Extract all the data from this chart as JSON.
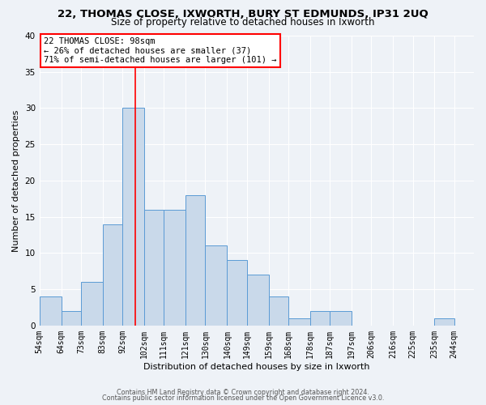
{
  "title": "22, THOMAS CLOSE, IXWORTH, BURY ST EDMUNDS, IP31 2UQ",
  "subtitle": "Size of property relative to detached houses in Ixworth",
  "xlabel": "Distribution of detached houses by size in Ixworth",
  "ylabel": "Number of detached properties",
  "bin_labels": [
    "54sqm",
    "64sqm",
    "73sqm",
    "83sqm",
    "92sqm",
    "102sqm",
    "111sqm",
    "121sqm",
    "130sqm",
    "140sqm",
    "149sqm",
    "159sqm",
    "168sqm",
    "178sqm",
    "187sqm",
    "197sqm",
    "206sqm",
    "216sqm",
    "225sqm",
    "235sqm",
    "244sqm"
  ],
  "bin_edges": [
    54,
    64,
    73,
    83,
    92,
    102,
    111,
    121,
    130,
    140,
    149,
    159,
    168,
    178,
    187,
    197,
    206,
    216,
    225,
    235,
    244
  ],
  "bar_heights": [
    4,
    2,
    6,
    14,
    30,
    16,
    16,
    18,
    11,
    9,
    7,
    4,
    1,
    2,
    2,
    0,
    0,
    0,
    0,
    1,
    0
  ],
  "bar_color": "#c9d9ea",
  "bar_edge_color": "#5b9bd5",
  "red_line_x": 98,
  "ylim": [
    0,
    40
  ],
  "yticks": [
    0,
    5,
    10,
    15,
    20,
    25,
    30,
    35,
    40
  ],
  "annotation_title": "22 THOMAS CLOSE: 98sqm",
  "annotation_line1": "← 26% of detached houses are smaller (37)",
  "annotation_line2": "71% of semi-detached houses are larger (101) →",
  "footer1": "Contains HM Land Registry data © Crown copyright and database right 2024.",
  "footer2": "Contains public sector information licensed under the Open Government Licence v3.0.",
  "bg_color": "#eef2f7",
  "grid_color": "#ffffff",
  "title_fontsize": 9.5,
  "subtitle_fontsize": 8.5,
  "axis_fontsize": 8,
  "tick_fontsize": 7,
  "annotation_fontsize": 7.5,
  "footer_fontsize": 5.8
}
